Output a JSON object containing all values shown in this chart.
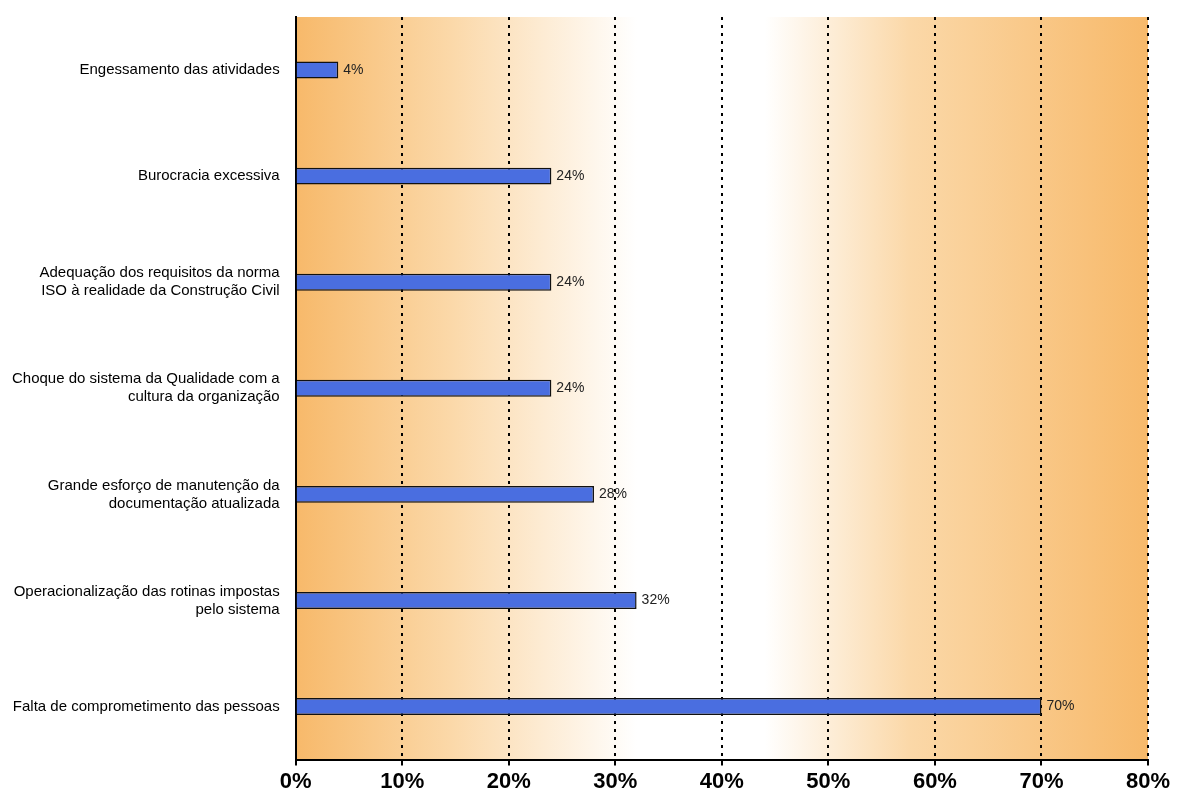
{
  "chart_data": {
    "type": "bar",
    "orientation": "horizontal",
    "categories": [
      "Engessamento das atividades",
      "Burocracia excessiva",
      "Adequação dos requisitos da norma ISO à realidade da Construção Civil",
      "Choque do sistema da Qualidade com a cultura da organização",
      "Grande esforço de manutenção da documentação atualizada",
      "Operacionalização das rotinas impostas pelo sistema",
      "Falta de comprometimento das pessoas"
    ],
    "values": [
      4,
      24,
      24,
      24,
      28,
      32,
      70
    ],
    "value_labels": [
      "4%",
      "24%",
      "24%",
      "24%",
      "28%",
      "32%",
      "70%"
    ],
    "color": "#4a6ee0",
    "xlim": [
      0,
      80
    ],
    "xticks": [
      {
        "value": 0,
        "label": "0%"
      },
      {
        "value": 10,
        "label": "10%"
      },
      {
        "value": 20,
        "label": "20%"
      },
      {
        "value": 30,
        "label": "30%"
      },
      {
        "value": 40,
        "label": "40%"
      },
      {
        "value": 50,
        "label": "50%"
      },
      {
        "value": 60,
        "label": "60%"
      },
      {
        "value": 70,
        "label": "70%"
      },
      {
        "value": 80,
        "label": "80%"
      }
    ],
    "grid": "x",
    "line_style": "dotted",
    "legend": false
  }
}
